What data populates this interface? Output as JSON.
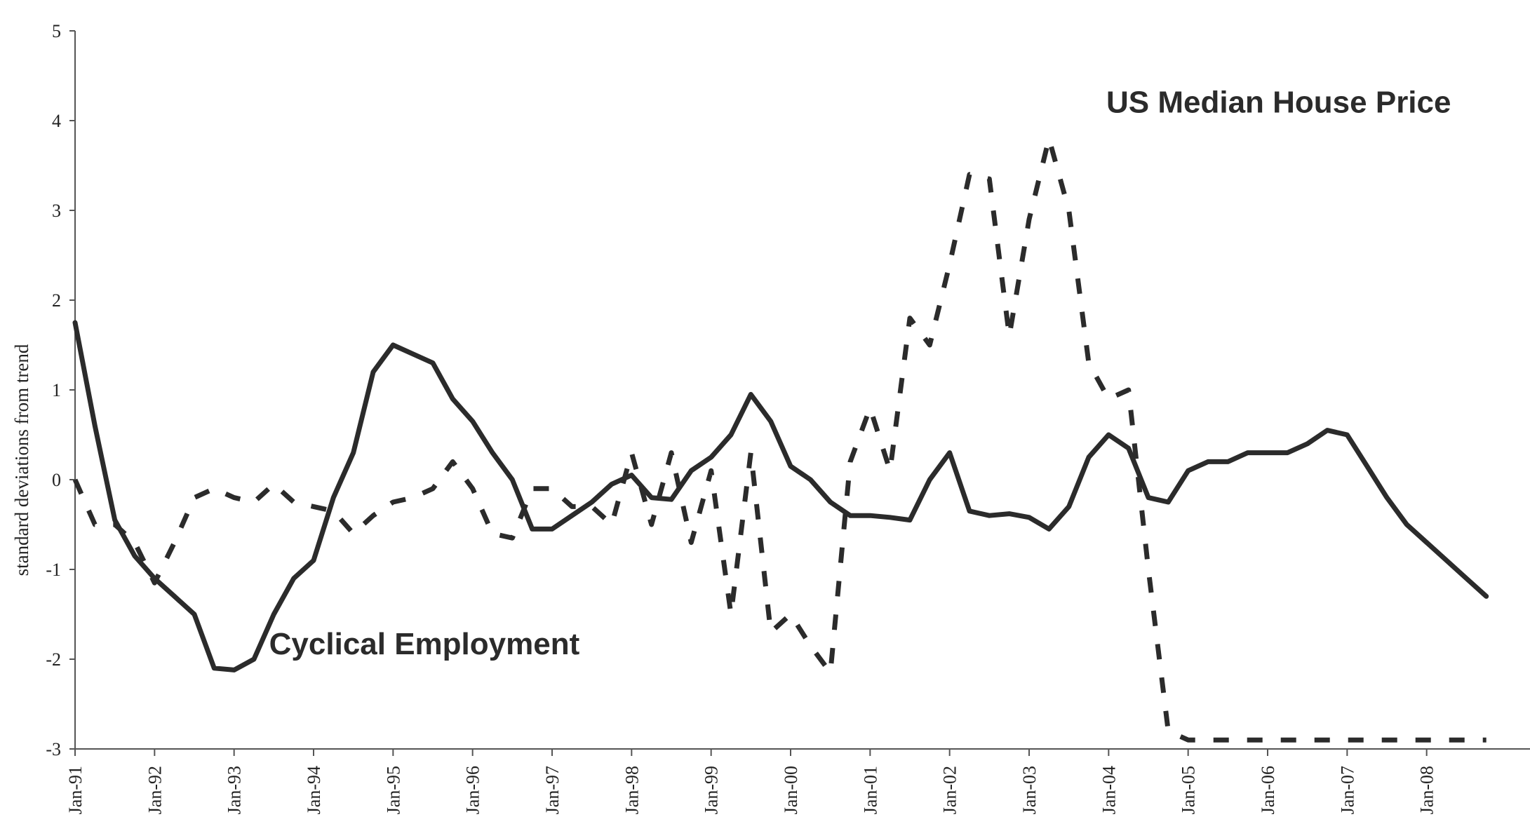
{
  "chart_data": {
    "type": "line",
    "title": "",
    "xlabel": "",
    "ylabel": "standard deviations from trend",
    "ylim": [
      -3,
      5
    ],
    "yticks": [
      5,
      4,
      3,
      2,
      1,
      0,
      -1,
      -2,
      -3
    ],
    "ytick_labels": [
      "5",
      "4",
      "3",
      "2",
      "1",
      "0",
      "-1",
      "-2",
      "-3"
    ],
    "xticks": [
      1991,
      1992,
      1993,
      1994,
      1995,
      1996,
      1997,
      1998,
      1999,
      2000,
      2001,
      2002,
      2003,
      2004,
      2005,
      2006,
      2007,
      2008
    ],
    "xtick_labels": [
      "Jan-91",
      "Jan-92",
      "Jan-93",
      "Jan-94",
      "Jan-95",
      "Jan-96",
      "Jan-97",
      "Jan-98",
      "Jan-99",
      "Jan-00",
      "Jan-01",
      "Jan-02",
      "Jan-03",
      "Jan-04",
      "Jan-05",
      "Jan-06",
      "Jan-07",
      "Jan-08"
    ],
    "grid": false,
    "legend": "none",
    "series": [
      {
        "name": "Cyclical Employment",
        "style": "solid",
        "color": "#2b2b2b",
        "label_anchor": [
          1993.75,
          -2.15
        ],
        "x": [
          1991.0,
          1991.25,
          1991.5,
          1991.75,
          1992.0,
          1992.25,
          1992.5,
          1992.75,
          1993.0,
          1993.25,
          1993.5,
          1993.75,
          1994.0,
          1994.25,
          1994.5,
          1994.75,
          1995.0,
          1995.25,
          1995.5,
          1995.75,
          1996.0,
          1996.25,
          1996.5,
          1996.75,
          1997.0,
          1997.25,
          1997.5,
          1997.75,
          1998.0,
          1998.25,
          1998.5,
          1998.75,
          1999.0,
          1999.25,
          1999.5,
          1999.75,
          2000.0,
          2000.25,
          2000.5,
          2000.75,
          2001.0,
          2001.25,
          2001.5,
          2001.75,
          2002.0,
          2002.25,
          2002.5,
          2002.75,
          2003.0,
          2003.25,
          2003.5,
          2003.75,
          2004.0,
          2004.25,
          2004.5,
          2004.75,
          2005.0,
          2005.25,
          2005.5,
          2005.75,
          2006.0,
          2006.25,
          2006.5,
          2006.75,
          2007.0,
          2007.25,
          2007.5,
          2007.75,
          2008.0,
          2008.25,
          2008.5,
          2008.75
        ],
        "values": [
          1.75,
          0.6,
          -0.45,
          -0.85,
          -1.1,
          -1.3,
          -1.5,
          -2.1,
          -2.12,
          -2.0,
          -1.5,
          -1.1,
          -0.9,
          -0.2,
          0.3,
          1.2,
          1.5,
          1.4,
          1.3,
          0.9,
          0.65,
          0.3,
          0.0,
          -0.55,
          -0.55,
          -0.4,
          -0.25,
          -0.05,
          0.05,
          -0.2,
          -0.22,
          0.1,
          0.25,
          0.5,
          0.95,
          0.65,
          0.15,
          0.0,
          -0.25,
          -0.4,
          -0.4,
          -0.42,
          -0.45,
          0.0,
          0.3,
          -0.35,
          -0.4,
          -0.38,
          -0.42,
          -0.55,
          -0.3,
          0.25,
          0.5,
          0.35,
          -0.2,
          -0.25,
          0.1,
          0.2,
          0.2,
          0.3,
          0.3,
          0.3,
          0.4,
          0.55,
          0.5,
          0.15,
          -0.2,
          -0.5,
          -0.7,
          -0.9,
          -1.1,
          -1.3
        ]
      },
      {
        "name": "US Median House Price",
        "style": "dashed",
        "color": "#2b2b2b",
        "label_anchor": [
          2006.0,
          4.2
        ],
        "x": [
          1991.0,
          1991.25,
          1991.5,
          1991.75,
          1992.0,
          1992.25,
          1992.5,
          1992.75,
          1993.0,
          1993.25,
          1993.5,
          1993.75,
          1994.0,
          1994.25,
          1994.5,
          1994.75,
          1995.0,
          1995.25,
          1995.5,
          1995.75,
          1996.0,
          1996.25,
          1996.5,
          1996.75,
          1997.0,
          1997.25,
          1997.5,
          1997.75,
          1998.0,
          1998.25,
          1998.5,
          1998.75,
          1999.0,
          1999.25,
          1999.5,
          1999.75,
          2000.0,
          2000.25,
          2000.5,
          2000.75,
          2001.0,
          2001.25,
          2001.5,
          2001.75,
          2002.0,
          2002.25,
          2002.5,
          2002.75,
          2003.0,
          2003.25,
          2003.5,
          2003.75,
          2004.0,
          2004.25,
          2004.5,
          2004.75,
          2005.0,
          2005.25,
          2005.5,
          2005.75,
          2006.0,
          2006.25,
          2006.5,
          2006.75,
          2007.0,
          2007.25,
          2007.5,
          2007.75,
          2008.0,
          2008.25,
          2008.5,
          2008.75
        ],
        "values": [
          0.0,
          -0.5,
          -0.5,
          -0.7,
          -1.15,
          -0.7,
          -0.2,
          -0.1,
          -0.2,
          -0.25,
          -0.05,
          -0.25,
          -0.3,
          -0.35,
          -0.6,
          -0.4,
          -0.25,
          -0.2,
          -0.1,
          0.2,
          -0.1,
          -0.6,
          -0.65,
          -0.1,
          -0.1,
          -0.3,
          -0.3,
          -0.5,
          0.3,
          -0.5,
          0.3,
          -0.7,
          0.1,
          -1.5,
          0.3,
          -1.7,
          -1.5,
          -1.85,
          -2.15,
          0.2,
          0.8,
          0.1,
          1.8,
          1.5,
          2.4,
          3.4,
          3.35,
          1.6,
          2.9,
          3.8,
          3.0,
          1.3,
          0.9,
          1.0,
          -1.0,
          -2.8,
          -2.9,
          -2.9,
          -2.9,
          -2.9,
          -2.9,
          -2.9,
          -2.9,
          -2.9,
          -2.9,
          -2.9,
          -2.9,
          -2.9,
          -2.9,
          -2.9,
          -2.9,
          -2.9
        ]
      }
    ]
  }
}
